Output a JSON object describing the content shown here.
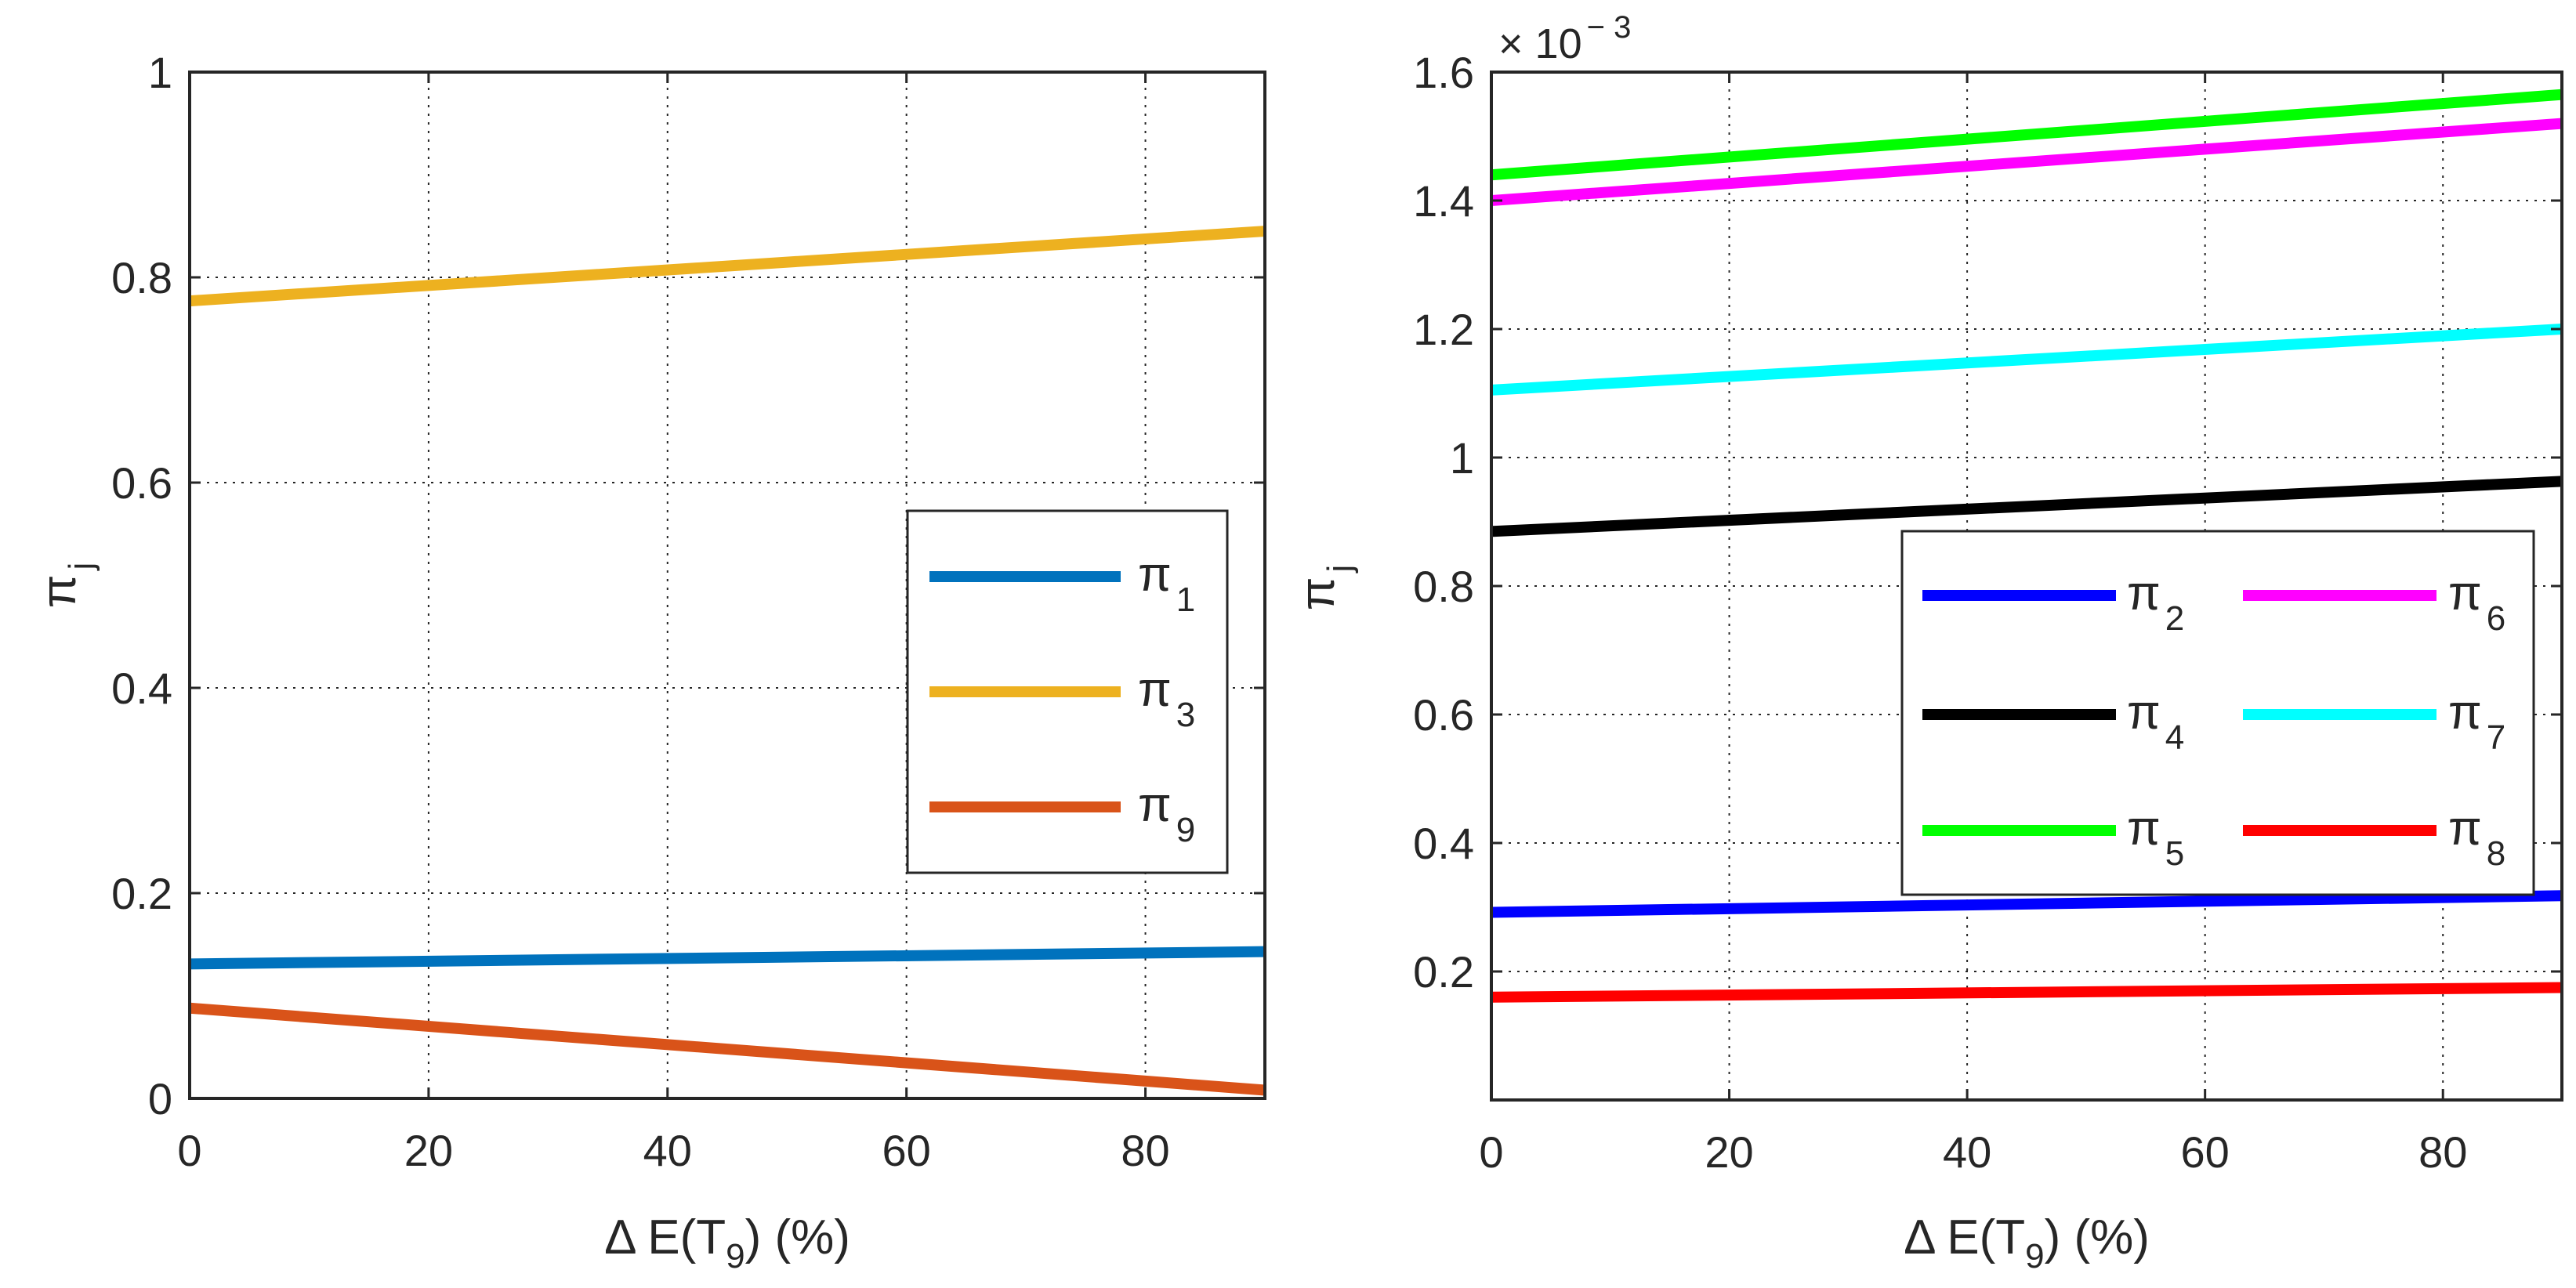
{
  "figure": {
    "xlabel_main": "Δ E(T",
    "xlabel_sub": "9",
    "xlabel_tail": ") (%)",
    "ylabel_main": "π",
    "ylabel_sub": "j"
  },
  "chart_data": [
    {
      "type": "line",
      "panel": "left",
      "xlabel": "Δ E(T9) (%)",
      "ylabel": "πj",
      "xlim": [
        0,
        90
      ],
      "ylim": [
        0,
        1
      ],
      "xticks": [
        0,
        20,
        40,
        60,
        80
      ],
      "yticks": [
        0,
        0.2,
        0.4,
        0.6,
        0.8,
        1
      ],
      "xtick_labels": [
        "0",
        "20",
        "40",
        "60",
        "80"
      ],
      "ytick_labels": [
        "0",
        "0.2",
        "0.4",
        "0.6",
        "0.8",
        "1"
      ],
      "grid": true,
      "legend_position": "right",
      "series": [
        {
          "name": "π1",
          "sym": "π",
          "sub": "1",
          "color": "#0072BD",
          "x": [
            0,
            90
          ],
          "values": [
            0.131,
            0.143
          ]
        },
        {
          "name": "π3",
          "sym": "π",
          "sub": "3",
          "color": "#EDB120",
          "x": [
            0,
            90
          ],
          "values": [
            0.777,
            0.845
          ]
        },
        {
          "name": "π9",
          "sym": "π",
          "sub": "9",
          "color": "#D95319",
          "x": [
            0,
            90
          ],
          "values": [
            0.088,
            0.008
          ]
        }
      ]
    },
    {
      "type": "line",
      "panel": "right",
      "xlabel": "Δ E(T9) (%)",
      "ylabel": "πj",
      "multiplier": "× 10",
      "multiplier_exp": "− 3",
      "xlim": [
        0,
        90
      ],
      "ylim": [
        0,
        1.6
      ],
      "xticks": [
        0,
        20,
        40,
        60,
        80
      ],
      "yticks": [
        0.2,
        0.4,
        0.6,
        0.8,
        1,
        1.2,
        1.4,
        1.6
      ],
      "xtick_labels": [
        "0",
        "20",
        "40",
        "60",
        "80"
      ],
      "ytick_labels": [
        "0.2",
        "0.4",
        "0.6",
        "0.8",
        "1",
        "1.2",
        "1.4",
        "1.6"
      ],
      "grid": true,
      "legend_position": "lower-right",
      "series": [
        {
          "name": "π2",
          "sym": "π",
          "sub": "2",
          "color": "#0000FF",
          "x": [
            0,
            90
          ],
          "values": [
            0.292,
            0.318
          ]
        },
        {
          "name": "π4",
          "sym": "π",
          "sub": "4",
          "color": "#000000",
          "x": [
            0,
            90
          ],
          "values": [
            0.885,
            0.963
          ]
        },
        {
          "name": "π5",
          "sym": "π",
          "sub": "5",
          "color": "#00FF00",
          "x": [
            0,
            90
          ],
          "values": [
            1.44,
            1.565
          ]
        },
        {
          "name": "π6",
          "sym": "π",
          "sub": "6",
          "color": "#FF00FF",
          "x": [
            0,
            90
          ],
          "values": [
            1.4,
            1.52
          ]
        },
        {
          "name": "π7",
          "sym": "π",
          "sub": "7",
          "color": "#00FFFF",
          "x": [
            0,
            90
          ],
          "values": [
            1.105,
            1.2
          ]
        },
        {
          "name": "π8",
          "sym": "π",
          "sub": "8",
          "color": "#FF0000",
          "x": [
            0,
            90
          ],
          "values": [
            0.16,
            0.175
          ]
        }
      ]
    }
  ]
}
